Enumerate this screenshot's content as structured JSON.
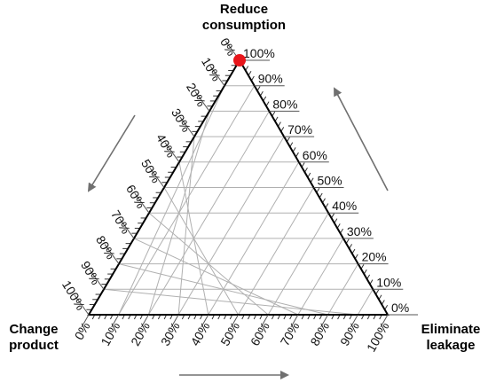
{
  "chart_data": {
    "type": "ternary",
    "corners": {
      "top": "Reduce\nconsumption",
      "left": "Change\nproduct",
      "right": "Eliminate\nleakage"
    },
    "tick_labels": [
      "0%",
      "10%",
      "20%",
      "30%",
      "40%",
      "50%",
      "60%",
      "70%",
      "80%",
      "90%",
      "100%"
    ],
    "grid": true,
    "grid_step_percent": 10,
    "points": [
      {
        "reduce_consumption": 100,
        "change_product": 0,
        "eliminate_leakage": 0,
        "color": "#e8161b"
      }
    ],
    "arrows": [
      "left-side-downward",
      "bottom-rightward",
      "right-side-upward"
    ],
    "colors": {
      "grid": "#b0b0b0",
      "frame": "#000000",
      "arrow": "#707070",
      "point": "#e8161b"
    }
  }
}
